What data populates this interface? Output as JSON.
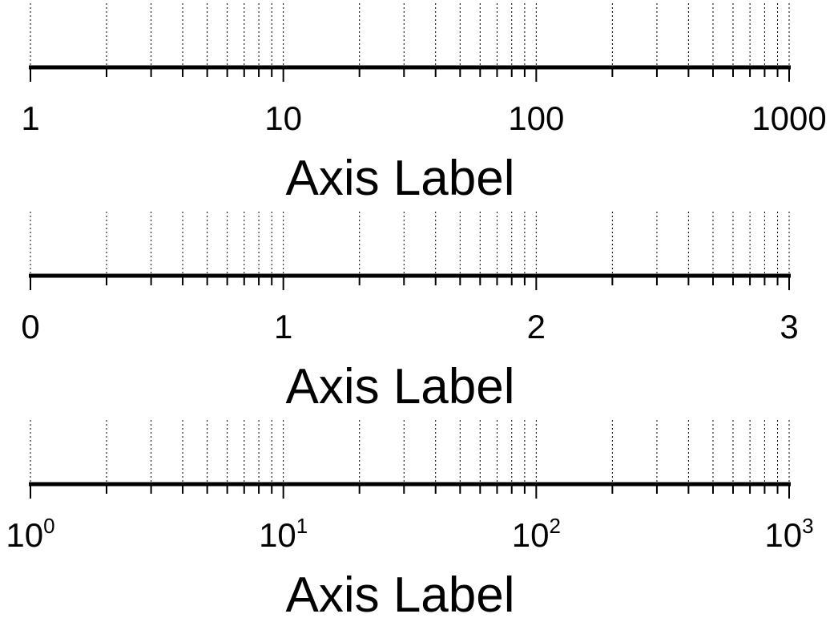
{
  "chart_data": [
    {
      "type": "axis",
      "scale": "log",
      "xlim": [
        1,
        1000
      ],
      "xlabel": "Axis Label",
      "grid": true,
      "major_ticks": [
        1,
        10,
        100,
        1000
      ],
      "tick_labels": [
        {
          "base": "1"
        },
        {
          "base": "10"
        },
        {
          "base": "100"
        },
        {
          "base": "1000"
        }
      ]
    },
    {
      "type": "axis",
      "scale": "log",
      "xlim": [
        1,
        1000
      ],
      "xlabel": "Axis Label",
      "grid": true,
      "major_ticks": [
        1,
        10,
        100,
        1000
      ],
      "tick_labels": [
        {
          "base": "0"
        },
        {
          "base": "1"
        },
        {
          "base": "2"
        },
        {
          "base": "3"
        }
      ]
    },
    {
      "type": "axis",
      "scale": "log",
      "xlim": [
        1,
        1000
      ],
      "xlabel": "Axis Label",
      "grid": true,
      "major_ticks": [
        1,
        10,
        100,
        1000
      ],
      "tick_labels": [
        {
          "base": "10",
          "exp": "0"
        },
        {
          "base": "10",
          "exp": "1"
        },
        {
          "base": "10",
          "exp": "2"
        },
        {
          "base": "10",
          "exp": "3"
        }
      ]
    }
  ]
}
